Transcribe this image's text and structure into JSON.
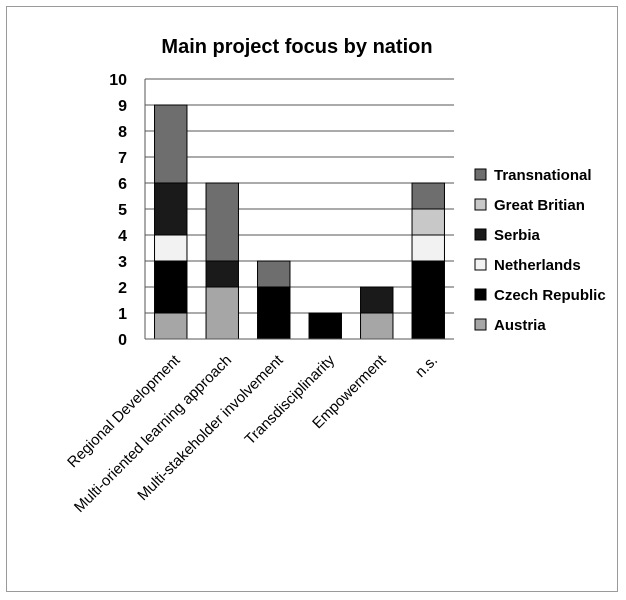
{
  "chart_data": {
    "type": "bar",
    "stacked": true,
    "title": "Main project focus by nation",
    "xlabel": "",
    "ylabel": "",
    "ylim": [
      0,
      10
    ],
    "yticks": [
      0,
      1,
      2,
      3,
      4,
      5,
      6,
      7,
      8,
      9,
      10
    ],
    "grid": true,
    "legend_position": "right",
    "categories": [
      "Regional Development",
      "Multi-oriented learning approach",
      "Multi-stakeholder involvement",
      "Transdisciplinarity",
      "Empowerment",
      "n.s."
    ],
    "series": [
      {
        "name": "Austria",
        "color": "#a6a6a6",
        "values": [
          1,
          2,
          0,
          0,
          1,
          0
        ]
      },
      {
        "name": "Czech Republic",
        "color": "#000000",
        "values": [
          2,
          0,
          2,
          1,
          0,
          3
        ]
      },
      {
        "name": "Netherlands",
        "color": "#f2f2f2",
        "values": [
          1,
          0,
          0,
          0,
          0,
          1
        ]
      },
      {
        "name": "Serbia",
        "color": "#1a1a1a",
        "values": [
          2,
          1,
          0,
          0,
          1,
          0
        ]
      },
      {
        "name": "Great Britian",
        "color": "#c8c8c8",
        "values": [
          0,
          0,
          0,
          0,
          0,
          1
        ]
      },
      {
        "name": "Transnational",
        "color": "#6e6e6e",
        "values": [
          3,
          3,
          1,
          0,
          0,
          1
        ]
      }
    ]
  }
}
